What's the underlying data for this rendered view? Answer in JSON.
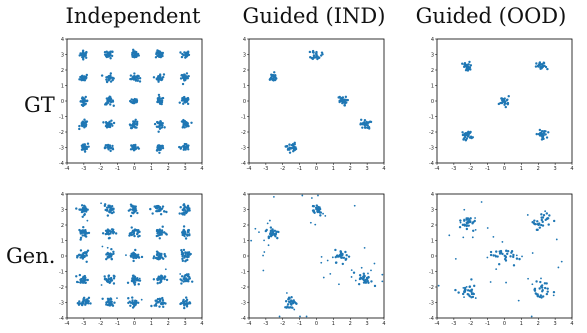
{
  "columns": [
    "Independent",
    "Guided (IND)",
    "Guided (OOD)"
  ],
  "rows": [
    "GT",
    "Gen."
  ],
  "chart_data": {
    "type": "scatter",
    "point_color": "#1f77b4",
    "xlim": [
      -4,
      4
    ],
    "ylim": [
      -4,
      4
    ],
    "ticks": [
      -4,
      -3,
      -2,
      -1,
      0,
      1,
      2,
      3,
      4
    ],
    "tick_labels": [
      "-4",
      "-3",
      "-2",
      "-1",
      "0",
      "1",
      "2",
      "3",
      "4"
    ],
    "panels": [
      {
        "row": "GT",
        "column": "Independent",
        "cluster_spread": 0.12,
        "noise_points": 0,
        "centers": [
          [
            -3,
            3
          ],
          [
            -1.5,
            3
          ],
          [
            0,
            3
          ],
          [
            1.5,
            3
          ],
          [
            3,
            3
          ],
          [
            -3,
            1.5
          ],
          [
            -1.5,
            1.5
          ],
          [
            0,
            1.5
          ],
          [
            1.5,
            1.5
          ],
          [
            3,
            1.5
          ],
          [
            -3,
            0
          ],
          [
            -1.5,
            0
          ],
          [
            0,
            0
          ],
          [
            1.5,
            0
          ],
          [
            3,
            0
          ],
          [
            -3,
            -1.5
          ],
          [
            -1.5,
            -1.5
          ],
          [
            0,
            -1.5
          ],
          [
            1.5,
            -1.5
          ],
          [
            3,
            -1.5
          ],
          [
            -3,
            -3
          ],
          [
            -1.5,
            -3
          ],
          [
            0,
            -3
          ],
          [
            1.5,
            -3
          ],
          [
            3,
            -3
          ]
        ]
      },
      {
        "row": "GT",
        "column": "Guided (IND)",
        "cluster_spread": 0.15,
        "noise_points": 0,
        "centers": [
          [
            0,
            3
          ],
          [
            -2.6,
            1.5
          ],
          [
            1.5,
            0
          ],
          [
            2.9,
            -1.5
          ],
          [
            -1.5,
            -3
          ]
        ]
      },
      {
        "row": "GT",
        "column": "Guided (OOD)",
        "cluster_spread": 0.15,
        "noise_points": 0,
        "centers": [
          [
            -2.2,
            2.2
          ],
          [
            2.2,
            2.2
          ],
          [
            0,
            0
          ],
          [
            -2.2,
            -2.2
          ],
          [
            2.2,
            -2.2
          ]
        ]
      },
      {
        "row": "Gen.",
        "column": "Independent",
        "cluster_spread": 0.15,
        "noise_points": 12,
        "centers": [
          [
            -3,
            3
          ],
          [
            -1.5,
            3
          ],
          [
            0,
            3
          ],
          [
            1.5,
            3
          ],
          [
            3,
            3
          ],
          [
            -3,
            1.5
          ],
          [
            -1.5,
            1.5
          ],
          [
            0,
            1.5
          ],
          [
            1.5,
            1.5
          ],
          [
            3,
            1.5
          ],
          [
            -3,
            0
          ],
          [
            -1.5,
            0
          ],
          [
            0,
            0
          ],
          [
            1.5,
            0
          ],
          [
            3,
            0
          ],
          [
            -3,
            -1.5
          ],
          [
            -1.5,
            -1.5
          ],
          [
            0,
            -1.5
          ],
          [
            1.5,
            -1.5
          ],
          [
            3,
            -1.5
          ],
          [
            -3,
            -3
          ],
          [
            -1.5,
            -3
          ],
          [
            0,
            -3
          ],
          [
            1.5,
            -3
          ],
          [
            3,
            -3
          ]
        ]
      },
      {
        "row": "Gen.",
        "column": "Guided (IND)",
        "cluster_spread": 0.2,
        "noise_points": 45,
        "centers": [
          [
            0,
            3
          ],
          [
            -2.6,
            1.5
          ],
          [
            1.5,
            0
          ],
          [
            2.9,
            -1.5
          ],
          [
            -1.5,
            -3
          ]
        ]
      },
      {
        "row": "Gen.",
        "column": "Guided (OOD)",
        "cluster_spread": 0.3,
        "noise_points": 40,
        "centers": [
          [
            -2.2,
            2.2
          ],
          [
            2.2,
            2.2
          ],
          [
            0,
            0
          ],
          [
            -2.2,
            -2.2
          ],
          [
            2.2,
            -2.2
          ]
        ]
      }
    ]
  }
}
